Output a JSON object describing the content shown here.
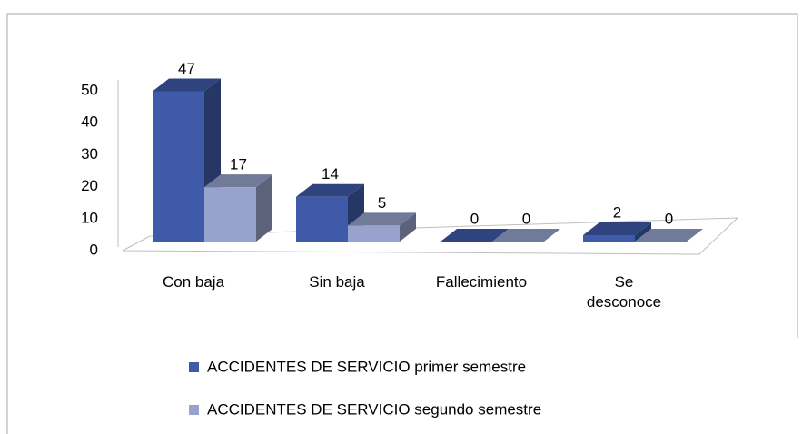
{
  "chart_data": {
    "type": "bar3d",
    "categories": [
      "Con baja",
      "Sin baja",
      "Fallecimiento",
      "Se desconoce"
    ],
    "series": [
      {
        "name": "ACCIDENTES DE SERVICIO primer semestre",
        "color": "#3f5aa8",
        "values": [
          47,
          14,
          0,
          2
        ]
      },
      {
        "name": "ACCIDENTES DE SERVICIO segundo semestre",
        "color": "#97a3cc",
        "values": [
          17,
          5,
          0,
          0
        ]
      }
    ],
    "ylim": [
      0,
      50
    ],
    "yticks": [
      0,
      10,
      20,
      30,
      40,
      50
    ],
    "legend": "bottom"
  }
}
